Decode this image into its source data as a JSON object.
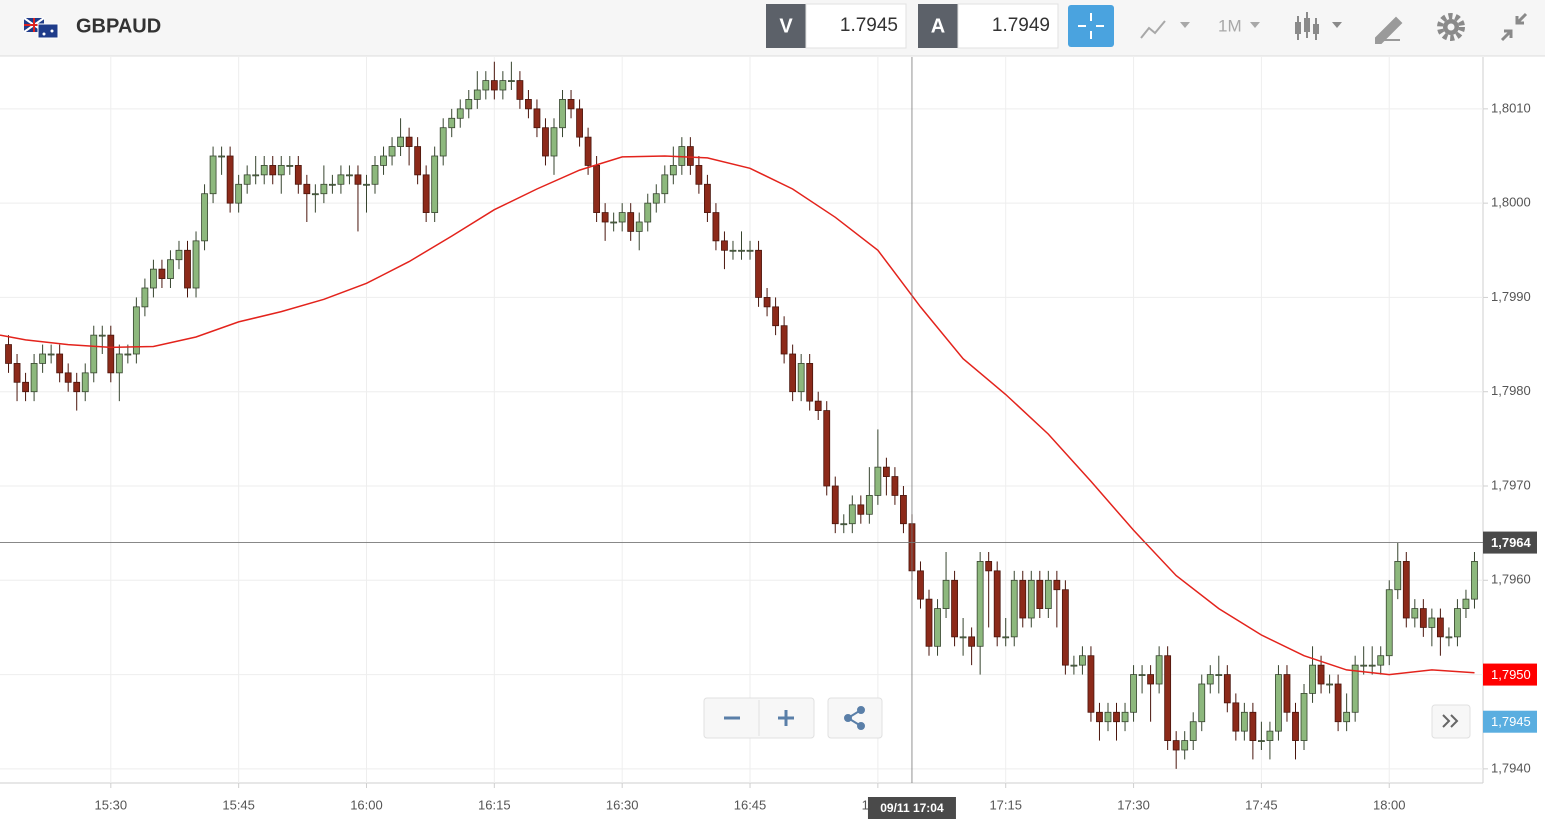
{
  "header": {
    "symbol": "GBPAUD",
    "bid_label": "V",
    "bid": 1.7945,
    "ask_label": "A",
    "ask": 1.7949,
    "timeframe": "1M"
  },
  "chart_data": {
    "type": "candlestick",
    "x": [
      "15:18",
      "15:19",
      "15:20",
      "15:21",
      "15:22",
      "15:23",
      "15:24",
      "15:25",
      "15:26",
      "15:27",
      "15:28",
      "15:29",
      "15:30",
      "15:31",
      "15:32",
      "15:33",
      "15:34",
      "15:35",
      "15:36",
      "15:37",
      "15:38",
      "15:39",
      "15:40",
      "15:41",
      "15:42",
      "15:43",
      "15:44",
      "15:45",
      "15:46",
      "15:47",
      "15:48",
      "15:49",
      "15:50",
      "15:51",
      "15:52",
      "15:53",
      "15:54",
      "15:55",
      "15:56",
      "15:57",
      "15:58",
      "15:59",
      "16:00",
      "16:01",
      "16:02",
      "16:03",
      "16:04",
      "16:05",
      "16:06",
      "16:07",
      "16:08",
      "16:09",
      "16:10",
      "16:11",
      "16:12",
      "16:13",
      "16:14",
      "16:15",
      "16:16",
      "16:17",
      "16:18",
      "16:19",
      "16:20",
      "16:21",
      "16:22",
      "16:23",
      "16:24",
      "16:25",
      "16:26",
      "16:27",
      "16:28",
      "16:29",
      "16:30",
      "16:31",
      "16:32",
      "16:33",
      "16:34",
      "16:35",
      "16:36",
      "16:37",
      "16:38",
      "16:39",
      "16:40",
      "16:41",
      "16:42",
      "16:43",
      "16:44",
      "16:45",
      "16:46",
      "16:47",
      "16:48",
      "16:49",
      "16:50",
      "16:51",
      "16:52",
      "16:53",
      "16:54",
      "16:55",
      "16:56",
      "16:57",
      "16:58",
      "16:59",
      "17:00",
      "17:01",
      "17:02",
      "17:03",
      "17:04",
      "17:05",
      "17:06",
      "17:07",
      "17:08",
      "17:09",
      "17:10",
      "17:11",
      "17:12",
      "17:13",
      "17:14",
      "17:15",
      "17:16",
      "17:17",
      "17:18",
      "17:19",
      "17:20",
      "17:21",
      "17:22",
      "17:23",
      "17:24",
      "17:25",
      "17:26",
      "17:27",
      "17:28",
      "17:29",
      "17:30",
      "17:31",
      "17:32",
      "17:33",
      "17:34",
      "17:35",
      "17:36",
      "17:37",
      "17:38",
      "17:39",
      "17:40",
      "17:41",
      "17:42",
      "17:43",
      "17:44",
      "17:45",
      "17:46",
      "17:47",
      "17:48",
      "17:49",
      "17:50",
      "17:51",
      "17:52",
      "17:53",
      "17:54",
      "17:55",
      "17:56",
      "17:57",
      "17:58",
      "17:59",
      "18:00",
      "18:01",
      "18:02",
      "18:03",
      "18:04",
      "18:05",
      "18:06",
      "18:07",
      "18:08",
      "18:09",
      "18:10"
    ],
    "candles": [
      [
        1.7985,
        1.7986,
        1.7982,
        1.7983
      ],
      [
        1.7983,
        1.7984,
        1.7979,
        1.7981
      ],
      [
        1.7981,
        1.7982,
        1.7979,
        1.798
      ],
      [
        1.798,
        1.7984,
        1.7979,
        1.7983
      ],
      [
        1.7983,
        1.7985,
        1.7982,
        1.7984
      ],
      [
        1.7984,
        1.7985,
        1.7983,
        1.7984
      ],
      [
        1.7984,
        1.7985,
        1.7981,
        1.7982
      ],
      [
        1.7982,
        1.7983,
        1.798,
        1.7981
      ],
      [
        1.7981,
        1.7982,
        1.7978,
        1.798
      ],
      [
        1.798,
        1.7983,
        1.7979,
        1.7982
      ],
      [
        1.7982,
        1.7987,
        1.7981,
        1.7986
      ],
      [
        1.7986,
        1.7987,
        1.7984,
        1.7986
      ],
      [
        1.7986,
        1.7987,
        1.7981,
        1.7982
      ],
      [
        1.7982,
        1.7985,
        1.7979,
        1.7984
      ],
      [
        1.7984,
        1.7985,
        1.7983,
        1.7984
      ],
      [
        1.7984,
        1.799,
        1.7983,
        1.7989
      ],
      [
        1.7989,
        1.7992,
        1.7988,
        1.7991
      ],
      [
        1.7991,
        1.7994,
        1.799,
        1.7993
      ],
      [
        1.7993,
        1.7994,
        1.7991,
        1.7992
      ],
      [
        1.7992,
        1.7995,
        1.7991,
        1.7994
      ],
      [
        1.7994,
        1.7996,
        1.7993,
        1.7995
      ],
      [
        1.7995,
        1.7996,
        1.799,
        1.7991
      ],
      [
        1.7991,
        1.7997,
        1.799,
        1.7996
      ],
      [
        1.7996,
        1.8002,
        1.7995,
        1.8001
      ],
      [
        1.8001,
        1.8006,
        1.8,
        1.8005
      ],
      [
        1.8005,
        1.8006,
        1.8003,
        1.8005
      ],
      [
        1.8005,
        1.8006,
        1.7999,
        1.8
      ],
      [
        1.8,
        1.8003,
        1.7999,
        1.8002
      ],
      [
        1.8002,
        1.8004,
        1.8001,
        1.8003
      ],
      [
        1.8003,
        1.8005,
        1.8002,
        1.8003
      ],
      [
        1.8003,
        1.8005,
        1.8002,
        1.8004
      ],
      [
        1.8004,
        1.8005,
        1.8002,
        1.8003
      ],
      [
        1.8003,
        1.8005,
        1.8001,
        1.8004
      ],
      [
        1.8004,
        1.8005,
        1.8003,
        1.8004
      ],
      [
        1.8004,
        1.8005,
        1.8001,
        1.8002
      ],
      [
        1.8002,
        1.8003,
        1.7998,
        1.8001
      ],
      [
        1.8001,
        1.8002,
        1.7999,
        1.8001
      ],
      [
        1.8001,
        1.8004,
        1.8,
        1.8002
      ],
      [
        1.8002,
        1.8003,
        1.8001,
        1.8002
      ],
      [
        1.8002,
        1.8004,
        1.8001,
        1.8003
      ],
      [
        1.8003,
        1.8004,
        1.8002,
        1.8003
      ],
      [
        1.8003,
        1.8004,
        1.7997,
        1.8002
      ],
      [
        1.8002,
        1.8003,
        1.7999,
        1.8002
      ],
      [
        1.8002,
        1.8005,
        1.8001,
        1.8004
      ],
      [
        1.8004,
        1.8006,
        1.8003,
        1.8005
      ],
      [
        1.8005,
        1.8007,
        1.8004,
        1.8006
      ],
      [
        1.8006,
        1.8009,
        1.8005,
        1.8007
      ],
      [
        1.8007,
        1.8008,
        1.8004,
        1.8006
      ],
      [
        1.8006,
        1.8007,
        1.8002,
        1.8003
      ],
      [
        1.8003,
        1.8004,
        1.7998,
        1.7999
      ],
      [
        1.7999,
        1.8006,
        1.7998,
        1.8005
      ],
      [
        1.8005,
        1.8009,
        1.8004,
        1.8008
      ],
      [
        1.8008,
        1.801,
        1.8007,
        1.8009
      ],
      [
        1.8009,
        1.8011,
        1.8008,
        1.801
      ],
      [
        1.801,
        1.8012,
        1.8009,
        1.8011
      ],
      [
        1.8011,
        1.8014,
        1.801,
        1.8012
      ],
      [
        1.8012,
        1.8014,
        1.8011,
        1.8013
      ],
      [
        1.8013,
        1.8015,
        1.8011,
        1.8012
      ],
      [
        1.8012,
        1.8014,
        1.8011,
        1.8013
      ],
      [
        1.8013,
        1.8015,
        1.8012,
        1.8013
      ],
      [
        1.8013,
        1.8014,
        1.801,
        1.8011
      ],
      [
        1.8011,
        1.8012,
        1.8009,
        1.801
      ],
      [
        1.801,
        1.8011,
        1.8007,
        1.8008
      ],
      [
        1.8008,
        1.8009,
        1.8004,
        1.8005
      ],
      [
        1.8005,
        1.8009,
        1.8003,
        1.8008
      ],
      [
        1.8008,
        1.8012,
        1.8007,
        1.8011
      ],
      [
        1.8011,
        1.8012,
        1.8009,
        1.801
      ],
      [
        1.801,
        1.8011,
        1.8006,
        1.8007
      ],
      [
        1.8007,
        1.8008,
        1.8003,
        1.8004
      ],
      [
        1.8004,
        1.8005,
        1.7998,
        1.7999
      ],
      [
        1.7999,
        1.8,
        1.7996,
        1.7998
      ],
      [
        1.7998,
        1.7999,
        1.7997,
        1.7998
      ],
      [
        1.7998,
        1.8,
        1.7997,
        1.7999
      ],
      [
        1.7999,
        1.8,
        1.7996,
        1.7997
      ],
      [
        1.7997,
        1.7999,
        1.7995,
        1.7998
      ],
      [
        1.7998,
        1.8001,
        1.7997,
        1.8
      ],
      [
        1.8,
        1.8002,
        1.7999,
        1.8001
      ],
      [
        1.8001,
        1.8004,
        1.8,
        1.8003
      ],
      [
        1.8003,
        1.8006,
        1.8002,
        1.8004
      ],
      [
        1.8004,
        1.8007,
        1.8003,
        1.8006
      ],
      [
        1.8006,
        1.8007,
        1.8003,
        1.8004
      ],
      [
        1.8004,
        1.8005,
        1.8001,
        1.8002
      ],
      [
        1.8002,
        1.8003,
        1.7998,
        1.7999
      ],
      [
        1.7999,
        1.8,
        1.7995,
        1.7996
      ],
      [
        1.7996,
        1.7997,
        1.7993,
        1.7995
      ],
      [
        1.7995,
        1.7996,
        1.7994,
        1.7995
      ],
      [
        1.7995,
        1.7997,
        1.7994,
        1.7995
      ],
      [
        1.7995,
        1.7996,
        1.7994,
        1.7995
      ],
      [
        1.7995,
        1.7996,
        1.7989,
        1.799
      ],
      [
        1.799,
        1.7991,
        1.7988,
        1.7989
      ],
      [
        1.7989,
        1.799,
        1.7986,
        1.7987
      ],
      [
        1.7987,
        1.7988,
        1.7983,
        1.7984
      ],
      [
        1.7984,
        1.7985,
        1.7979,
        1.798
      ],
      [
        1.798,
        1.7984,
        1.7979,
        1.7983
      ],
      [
        1.7983,
        1.7984,
        1.7978,
        1.7979
      ],
      [
        1.7979,
        1.798,
        1.7977,
        1.7978
      ],
      [
        1.7978,
        1.7979,
        1.7969,
        1.797
      ],
      [
        1.797,
        1.7971,
        1.7965,
        1.7966
      ],
      [
        1.7966,
        1.7967,
        1.7965,
        1.7966
      ],
      [
        1.7966,
        1.7969,
        1.7965,
        1.7968
      ],
      [
        1.7968,
        1.7969,
        1.7966,
        1.7967
      ],
      [
        1.7967,
        1.7972,
        1.7966,
        1.7969
      ],
      [
        1.7969,
        1.7976,
        1.7968,
        1.7972
      ],
      [
        1.7972,
        1.7973,
        1.7969,
        1.7971
      ],
      [
        1.7971,
        1.7972,
        1.7968,
        1.7969
      ],
      [
        1.7969,
        1.797,
        1.7965,
        1.7966
      ],
      [
        1.7966,
        1.7967,
        1.796,
        1.7961
      ],
      [
        1.7961,
        1.7962,
        1.7957,
        1.7958
      ],
      [
        1.7958,
        1.7959,
        1.7952,
        1.7953
      ],
      [
        1.7953,
        1.7958,
        1.7952,
        1.7957
      ],
      [
        1.7957,
        1.7963,
        1.7956,
        1.796
      ],
      [
        1.796,
        1.7961,
        1.7953,
        1.7954
      ],
      [
        1.7954,
        1.7956,
        1.7952,
        1.7954
      ],
      [
        1.7954,
        1.7955,
        1.7951,
        1.7953
      ],
      [
        1.7953,
        1.7963,
        1.795,
        1.7962
      ],
      [
        1.7962,
        1.7963,
        1.7955,
        1.7961
      ],
      [
        1.7961,
        1.7962,
        1.7953,
        1.7954
      ],
      [
        1.7954,
        1.7956,
        1.7953,
        1.7954
      ],
      [
        1.7954,
        1.7961,
        1.7953,
        1.796
      ],
      [
        1.796,
        1.7961,
        1.7955,
        1.7956
      ],
      [
        1.7956,
        1.7961,
        1.7955,
        1.796
      ],
      [
        1.796,
        1.7961,
        1.7956,
        1.7957
      ],
      [
        1.7957,
        1.7961,
        1.7956,
        1.796
      ],
      [
        1.796,
        1.7961,
        1.7955,
        1.7959
      ],
      [
        1.7959,
        1.796,
        1.795,
        1.7951
      ],
      [
        1.7951,
        1.7952,
        1.795,
        1.7951
      ],
      [
        1.7951,
        1.7953,
        1.795,
        1.7952
      ],
      [
        1.7952,
        1.7953,
        1.7945,
        1.7946
      ],
      [
        1.7946,
        1.7947,
        1.7943,
        1.7945
      ],
      [
        1.7945,
        1.7947,
        1.7944,
        1.7946
      ],
      [
        1.7946,
        1.7947,
        1.7943,
        1.7945
      ],
      [
        1.7945,
        1.7947,
        1.7944,
        1.7946
      ],
      [
        1.7946,
        1.7951,
        1.7945,
        1.795
      ],
      [
        1.795,
        1.7951,
        1.7948,
        1.795
      ],
      [
        1.795,
        1.7951,
        1.7945,
        1.7949
      ],
      [
        1.7949,
        1.7953,
        1.7948,
        1.7952
      ],
      [
        1.7952,
        1.7953,
        1.7942,
        1.7943
      ],
      [
        1.7943,
        1.7944,
        1.794,
        1.7942
      ],
      [
        1.7942,
        1.7944,
        1.7941,
        1.7943
      ],
      [
        1.7943,
        1.7946,
        1.7942,
        1.7945
      ],
      [
        1.7945,
        1.795,
        1.7944,
        1.7949
      ],
      [
        1.7949,
        1.7951,
        1.7948,
        1.795
      ],
      [
        1.795,
        1.7952,
        1.7948,
        1.795
      ],
      [
        1.795,
        1.7951,
        1.7946,
        1.7947
      ],
      [
        1.7947,
        1.7948,
        1.7943,
        1.7944
      ],
      [
        1.7944,
        1.7947,
        1.7943,
        1.7946
      ],
      [
        1.7946,
        1.7947,
        1.7941,
        1.7943
      ],
      [
        1.7943,
        1.7945,
        1.7942,
        1.7943
      ],
      [
        1.7943,
        1.7945,
        1.7941,
        1.7944
      ],
      [
        1.7944,
        1.7951,
        1.7943,
        1.795
      ],
      [
        1.795,
        1.7951,
        1.7945,
        1.7946
      ],
      [
        1.7946,
        1.7947,
        1.7941,
        1.7943
      ],
      [
        1.7943,
        1.7949,
        1.7942,
        1.7948
      ],
      [
        1.7948,
        1.7953,
        1.7947,
        1.7951
      ],
      [
        1.7951,
        1.7952,
        1.7948,
        1.7949
      ],
      [
        1.7949,
        1.795,
        1.7948,
        1.7949
      ],
      [
        1.7949,
        1.795,
        1.7944,
        1.7945
      ],
      [
        1.7945,
        1.7948,
        1.7944,
        1.7946
      ],
      [
        1.7946,
        1.7952,
        1.7945,
        1.7951
      ],
      [
        1.7951,
        1.7953,
        1.795,
        1.7951
      ],
      [
        1.7951,
        1.7953,
        1.795,
        1.7951
      ],
      [
        1.7951,
        1.7953,
        1.795,
        1.7952
      ],
      [
        1.7952,
        1.796,
        1.7951,
        1.7959
      ],
      [
        1.7959,
        1.7964,
        1.7958,
        1.7962
      ],
      [
        1.7962,
        1.7963,
        1.7955,
        1.7956
      ],
      [
        1.7956,
        1.7958,
        1.7955,
        1.7957
      ],
      [
        1.7957,
        1.7958,
        1.7954,
        1.7955
      ],
      [
        1.7955,
        1.7957,
        1.7953,
        1.7956
      ],
      [
        1.7956,
        1.7957,
        1.7952,
        1.7954
      ],
      [
        1.7954,
        1.7955,
        1.7953,
        1.7954
      ],
      [
        1.7954,
        1.7958,
        1.7953,
        1.7957
      ],
      [
        1.7957,
        1.7959,
        1.7956,
        1.7958
      ],
      [
        1.7958,
        1.7963,
        1.7957,
        1.7962
      ]
    ],
    "up_color": "#8db87d",
    "down_color": "#8c2a1a",
    "ma": {
      "color": "#e3231c",
      "x": [
        "15:17",
        "15:20",
        "15:25",
        "15:30",
        "15:35",
        "15:40",
        "15:45",
        "15:50",
        "15:55",
        "16:00",
        "16:05",
        "16:10",
        "16:15",
        "16:20",
        "16:25",
        "16:30",
        "16:35",
        "16:40",
        "16:45",
        "16:50",
        "16:55",
        "17:00",
        "17:05",
        "17:10",
        "17:15",
        "17:20",
        "17:25",
        "17:30",
        "17:35",
        "17:40",
        "17:45",
        "17:50",
        "17:55",
        "18:00",
        "18:05",
        "18:10"
      ],
      "values": [
        1.7986,
        1.79855,
        1.7985,
        1.79847,
        1.79848,
        1.79858,
        1.79874,
        1.79885,
        1.79898,
        1.79915,
        1.79938,
        1.79965,
        1.79993,
        1.80015,
        1.80035,
        1.80049,
        1.8005,
        1.80048,
        1.80037,
        1.80015,
        1.79985,
        1.7995,
        1.7989,
        1.79835,
        1.79797,
        1.79755,
        1.79705,
        1.79653,
        1.79605,
        1.7957,
        1.79542,
        1.7952,
        1.79505,
        1.795,
        1.79505,
        1.79502
      ]
    },
    "xlim": [
      "15:17",
      "18:11"
    ],
    "xticks": [
      "15:30",
      "15:45",
      "16:00",
      "16:15",
      "16:30",
      "16:45",
      "17:00",
      "17:15",
      "17:30",
      "17:45",
      "18:00"
    ],
    "ylim": [
      1.79385,
      1.80155
    ],
    "yticks": [
      {
        "value": 1.794,
        "label": "1,7940"
      },
      {
        "value": 1.795,
        "label": "1,7950"
      },
      {
        "value": 1.796,
        "label": "1,7960"
      },
      {
        "value": 1.797,
        "label": "1,7970"
      },
      {
        "value": 1.798,
        "label": "1,7980"
      },
      {
        "value": 1.799,
        "label": "1,7990"
      },
      {
        "value": 1.8,
        "label": "1,8000"
      },
      {
        "value": 1.801,
        "label": "1,8010"
      }
    ],
    "grid": true,
    "crosshair": {
      "x": "17:04",
      "x_label": "09/11 17:04",
      "y": 1.7964,
      "y_label": "1,7964"
    },
    "price_labels": [
      {
        "value": 1.795,
        "label": "1,7950",
        "color": "#ff0000"
      },
      {
        "value": 1.7945,
        "label": "1,7945",
        "color": "#5aaee0"
      }
    ]
  }
}
